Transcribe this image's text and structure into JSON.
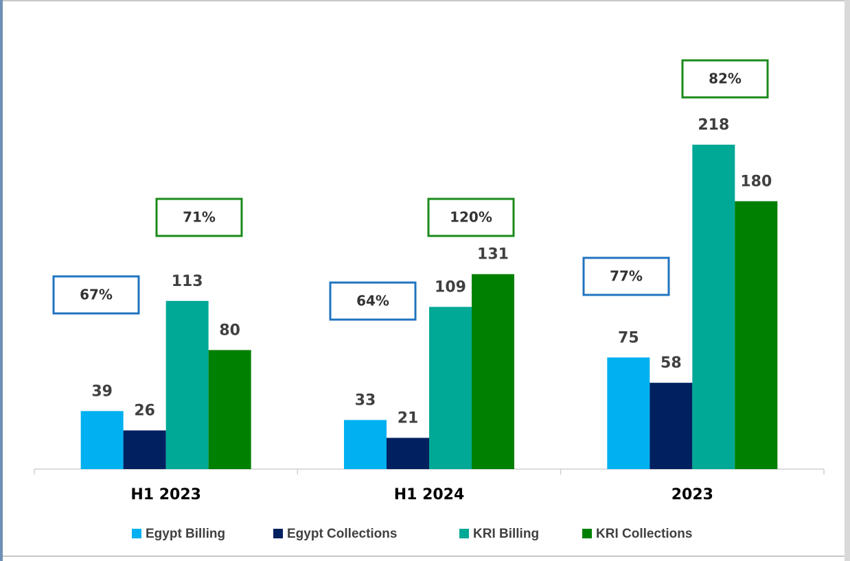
{
  "chart_data": {
    "type": "bar",
    "categories": [
      "H1 2023",
      "H1 2024",
      "2023"
    ],
    "series": [
      {
        "name": "Egypt Billing",
        "color": "#00b0f0",
        "values": [
          39,
          33,
          75
        ]
      },
      {
        "name": "Egypt Collections",
        "color": "#002060",
        "values": [
          26,
          21,
          58
        ]
      },
      {
        "name": "KRI Billing",
        "color": "#00a896",
        "values": [
          113,
          109,
          218
        ]
      },
      {
        "name": "KRI Collections",
        "color": "#008000",
        "values": [
          80,
          131,
          180
        ]
      }
    ],
    "egypt_ratio_labels": [
      "67%",
      "64%",
      "77%"
    ],
    "kri_ratio_labels": [
      "71%",
      "120%",
      "82%"
    ],
    "egypt_ratio_color": "#1f74c0",
    "kri_ratio_color": "#1a8a1a",
    "ylim": [
      0,
      300
    ],
    "legend": "bottom"
  }
}
